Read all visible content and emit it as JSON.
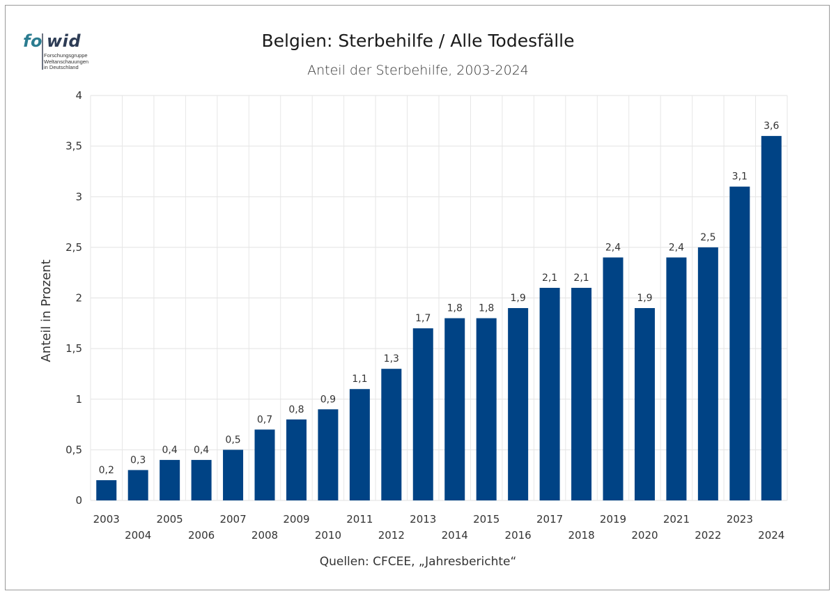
{
  "logo": {
    "brand_fo": "fo",
    "brand_wid": "wid",
    "sub_line1": "Forschungsgruppe",
    "sub_line2": "Weltanschauungen",
    "sub_line3": "in Deutschland"
  },
  "title": "Belgien: Sterbehilfe / Alle Todesfälle",
  "subtitle": "Anteil der Sterbehilfe, 2003-2024",
  "source": "Quellen: CFCEE, „Jahresberichte“",
  "chart_data": {
    "type": "bar",
    "categories": [
      "2003",
      "2004",
      "2005",
      "2006",
      "2007",
      "2008",
      "2009",
      "2010",
      "2011",
      "2012",
      "2013",
      "2014",
      "2015",
      "2016",
      "2017",
      "2018",
      "2019",
      "2020",
      "2021",
      "2022",
      "2023",
      "2024"
    ],
    "values": [
      0.2,
      0.3,
      0.4,
      0.4,
      0.5,
      0.7,
      0.8,
      0.9,
      1.1,
      1.3,
      1.7,
      1.8,
      1.8,
      1.9,
      2.1,
      2.1,
      2.4,
      1.9,
      2.4,
      2.5,
      3.1,
      3.6
    ],
    "value_labels": [
      "0,2",
      "0,3",
      "0,4",
      "0,4",
      "0,5",
      "0,7",
      "0,8",
      "0,9",
      "1,1",
      "1,3",
      "1,7",
      "1,8",
      "1,8",
      "1,9",
      "2,1",
      "2,1",
      "2,4",
      "1,9",
      "2,4",
      "2,5",
      "3,1",
      "3,6"
    ],
    "ylabel": "Anteil in Prozent",
    "xlabel": "",
    "ylim": [
      0,
      4
    ],
    "yticks": [
      0,
      0.5,
      1,
      1.5,
      2,
      2.5,
      3,
      3.5,
      4
    ],
    "ytick_labels": [
      "0",
      "0,5",
      "1",
      "1,5",
      "2",
      "2,5",
      "3",
      "3,5",
      "4"
    ],
    "grid": true,
    "bar_color": "#004385"
  }
}
